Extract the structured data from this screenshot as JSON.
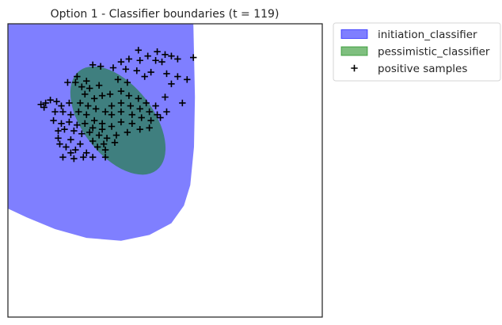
{
  "chart_data": {
    "type": "scatter",
    "title": "Option 1 - Classifier boundaries (t = 119)",
    "xlabel": "",
    "ylabel": "",
    "xlim": [
      0,
      1
    ],
    "ylim": [
      0,
      1
    ],
    "grid": false,
    "legend_placement": "outside-top-right",
    "regions": [
      {
        "name": "initiation_classifier",
        "color": "#0000ff",
        "alpha": 0.5,
        "boundary": [
          [
            0.0,
            0.0
          ],
          [
            0.59,
            0.0
          ],
          [
            0.595,
            0.25
          ],
          [
            0.592,
            0.42
          ],
          [
            0.58,
            0.55
          ],
          [
            0.56,
            0.62
          ],
          [
            0.52,
            0.68
          ],
          [
            0.45,
            0.72
          ],
          [
            0.36,
            0.74
          ],
          [
            0.25,
            0.73
          ],
          [
            0.15,
            0.7
          ],
          [
            0.06,
            0.66
          ],
          [
            0.0,
            0.63
          ]
        ]
      },
      {
        "name": "pessimistic_classifier",
        "color": "#008000",
        "alpha": 0.5,
        "ellipse": {
          "cx": 0.35,
          "cy": 0.33,
          "rx": 0.2,
          "ry": 0.12,
          "rotation_deg": 52
        }
      }
    ],
    "series": [
      {
        "name": "positive samples",
        "marker": "+",
        "color": "#000000",
        "points": [
          [
            0.415,
            0.09
          ],
          [
            0.475,
            0.095
          ],
          [
            0.445,
            0.11
          ],
          [
            0.5,
            0.105
          ],
          [
            0.52,
            0.11
          ],
          [
            0.54,
            0.12
          ],
          [
            0.59,
            0.115
          ],
          [
            0.49,
            0.13
          ],
          [
            0.47,
            0.125
          ],
          [
            0.42,
            0.125
          ],
          [
            0.385,
            0.12
          ],
          [
            0.36,
            0.13
          ],
          [
            0.335,
            0.15
          ],
          [
            0.375,
            0.155
          ],
          [
            0.41,
            0.16
          ],
          [
            0.455,
            0.165
          ],
          [
            0.505,
            0.17
          ],
          [
            0.54,
            0.18
          ],
          [
            0.57,
            0.19
          ],
          [
            0.435,
            0.18
          ],
          [
            0.38,
            0.2
          ],
          [
            0.35,
            0.19
          ],
          [
            0.27,
            0.14
          ],
          [
            0.295,
            0.145
          ],
          [
            0.22,
            0.18
          ],
          [
            0.25,
            0.195
          ],
          [
            0.19,
            0.2
          ],
          [
            0.215,
            0.2
          ],
          [
            0.235,
            0.215
          ],
          [
            0.26,
            0.22
          ],
          [
            0.29,
            0.21
          ],
          [
            0.245,
            0.24
          ],
          [
            0.275,
            0.255
          ],
          [
            0.3,
            0.245
          ],
          [
            0.325,
            0.24
          ],
          [
            0.36,
            0.23
          ],
          [
            0.385,
            0.245
          ],
          [
            0.415,
            0.255
          ],
          [
            0.44,
            0.27
          ],
          [
            0.47,
            0.28
          ],
          [
            0.5,
            0.25
          ],
          [
            0.52,
            0.205
          ],
          [
            0.555,
            0.27
          ],
          [
            0.505,
            0.3
          ],
          [
            0.475,
            0.31
          ],
          [
            0.45,
            0.3
          ],
          [
            0.42,
            0.29
          ],
          [
            0.39,
            0.28
          ],
          [
            0.36,
            0.27
          ],
          [
            0.33,
            0.28
          ],
          [
            0.31,
            0.3
          ],
          [
            0.28,
            0.29
          ],
          [
            0.255,
            0.28
          ],
          [
            0.23,
            0.27
          ],
          [
            0.195,
            0.27
          ],
          [
            0.17,
            0.28
          ],
          [
            0.155,
            0.265
          ],
          [
            0.135,
            0.26
          ],
          [
            0.12,
            0.27
          ],
          [
            0.105,
            0.275
          ],
          [
            0.115,
            0.285
          ],
          [
            0.15,
            0.3
          ],
          [
            0.175,
            0.3
          ],
          [
            0.2,
            0.31
          ],
          [
            0.225,
            0.3
          ],
          [
            0.25,
            0.31
          ],
          [
            0.275,
            0.33
          ],
          [
            0.3,
            0.34
          ],
          [
            0.33,
            0.31
          ],
          [
            0.36,
            0.3
          ],
          [
            0.395,
            0.31
          ],
          [
            0.425,
            0.32
          ],
          [
            0.455,
            0.33
          ],
          [
            0.485,
            0.32
          ],
          [
            0.395,
            0.34
          ],
          [
            0.36,
            0.335
          ],
          [
            0.33,
            0.35
          ],
          [
            0.3,
            0.36
          ],
          [
            0.27,
            0.355
          ],
          [
            0.245,
            0.34
          ],
          [
            0.22,
            0.345
          ],
          [
            0.195,
            0.335
          ],
          [
            0.17,
            0.34
          ],
          [
            0.145,
            0.33
          ],
          [
            0.42,
            0.36
          ],
          [
            0.45,
            0.355
          ],
          [
            0.38,
            0.37
          ],
          [
            0.345,
            0.38
          ],
          [
            0.315,
            0.39
          ],
          [
            0.29,
            0.38
          ],
          [
            0.26,
            0.37
          ],
          [
            0.235,
            0.375
          ],
          [
            0.21,
            0.365
          ],
          [
            0.18,
            0.36
          ],
          [
            0.16,
            0.365
          ],
          [
            0.2,
            0.395
          ],
          [
            0.23,
            0.41
          ],
          [
            0.27,
            0.4
          ],
          [
            0.305,
            0.41
          ],
          [
            0.34,
            0.405
          ],
          [
            0.16,
            0.39
          ],
          [
            0.165,
            0.41
          ],
          [
            0.185,
            0.42
          ],
          [
            0.215,
            0.43
          ],
          [
            0.25,
            0.44
          ],
          [
            0.285,
            0.42
          ],
          [
            0.31,
            0.43
          ],
          [
            0.2,
            0.44
          ],
          [
            0.175,
            0.455
          ],
          [
            0.21,
            0.46
          ],
          [
            0.24,
            0.455
          ],
          [
            0.27,
            0.455
          ],
          [
            0.31,
            0.455
          ]
        ]
      }
    ],
    "legend": [
      {
        "label": "initiation_classifier",
        "kind": "patch",
        "color": "#0000ff",
        "alpha": 0.5
      },
      {
        "label": "pessimistic_classifier",
        "kind": "patch",
        "color": "#008000",
        "alpha": 0.5
      },
      {
        "label": "positive samples",
        "kind": "marker",
        "marker": "+",
        "color": "#000000"
      }
    ]
  }
}
